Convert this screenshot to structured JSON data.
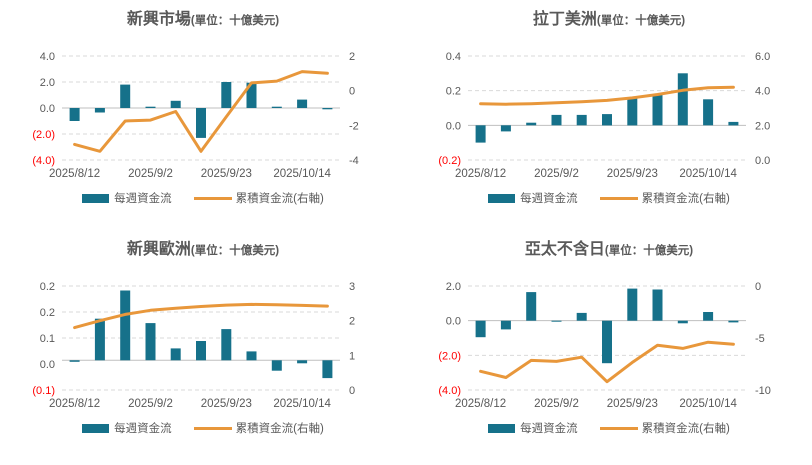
{
  "colors": {
    "bar": "#16718A",
    "line": "#E8973B",
    "grid": "#D9D9D9",
    "axis_line": "#BFBFBF",
    "text": "#595959",
    "negative": "#FF0000",
    "background": "#FFFFFF"
  },
  "legend": {
    "bar_label": "每週資金流",
    "line_label": "累積資金流(右軸)"
  },
  "chart_data": [
    {
      "type": "bar+line",
      "title": "新興市場",
      "unit_label": "(單位：十億美元)",
      "x_tick_labels": [
        "2025/8/12",
        "2025/9/2",
        "2025/9/23",
        "2025/10/14"
      ],
      "x_tick_indices": [
        0,
        3,
        6,
        9
      ],
      "left_axis": {
        "min": -4,
        "max": 4,
        "ticks": [
          {
            "value": 4,
            "label": "4.0"
          },
          {
            "value": 2,
            "label": "2.0"
          },
          {
            "value": 0,
            "label": "0.0"
          },
          {
            "value": -2,
            "label": "(2.0)"
          },
          {
            "value": -4,
            "label": "(4.0)"
          }
        ]
      },
      "right_axis": {
        "min": -4,
        "max": 2,
        "ticks": [
          {
            "value": 2,
            "label": "2"
          },
          {
            "value": 0,
            "label": "0"
          },
          {
            "value": -2,
            "label": "-2"
          },
          {
            "value": -4,
            "label": "-4"
          }
        ]
      },
      "series": [
        {
          "name": "每週資金流",
          "type": "bar",
          "axis": "left",
          "values": [
            -1.0,
            -0.35,
            1.8,
            0.1,
            0.55,
            -2.3,
            2.0,
            1.95,
            0.1,
            0.65,
            -0.1
          ]
        },
        {
          "name": "累積資金流(右軸)",
          "type": "line",
          "axis": "right",
          "values": [
            -3.1,
            -3.5,
            -1.75,
            -1.7,
            -1.2,
            -3.5,
            -1.5,
            0.45,
            0.55,
            1.1,
            1.0
          ]
        }
      ]
    },
    {
      "type": "bar+line",
      "title": "拉丁美洲",
      "unit_label": "(單位：十億美元)",
      "x_tick_labels": [
        "2025/8/12",
        "2025/9/2",
        "2025/9/23",
        "2025/10/14"
      ],
      "x_tick_indices": [
        0,
        3,
        6,
        9
      ],
      "left_axis": {
        "min": -0.2,
        "max": 0.4,
        "ticks": [
          {
            "value": 0.4,
            "label": "0.4"
          },
          {
            "value": 0.2,
            "label": "0.2"
          },
          {
            "value": 0,
            "label": "0.0"
          },
          {
            "value": -0.2,
            "label": "(0.2)"
          }
        ]
      },
      "right_axis": {
        "min": 0,
        "max": 6,
        "ticks": [
          {
            "value": 6,
            "label": "6.0"
          },
          {
            "value": 4,
            "label": "4.0"
          },
          {
            "value": 2,
            "label": "2.0"
          },
          {
            "value": 0,
            "label": "0.0"
          }
        ]
      },
      "series": [
        {
          "name": "每週資金流",
          "type": "bar",
          "axis": "left",
          "values": [
            -0.1,
            -0.035,
            0.015,
            0.06,
            0.06,
            0.065,
            0.155,
            0.18,
            0.3,
            0.15,
            0.02
          ]
        },
        {
          "name": "累積資金流(右軸)",
          "type": "line",
          "axis": "right",
          "values": [
            3.25,
            3.22,
            3.25,
            3.3,
            3.36,
            3.44,
            3.58,
            3.78,
            4.02,
            4.17,
            4.2
          ]
        }
      ]
    },
    {
      "type": "bar+line",
      "title": "新興歐洲",
      "unit_label": "(單位：十億美元)",
      "x_tick_labels": [
        "2025/8/12",
        "2025/9/2",
        "2025/9/23",
        "2025/10/14"
      ],
      "x_tick_indices": [
        0,
        3,
        6,
        9
      ],
      "left_axis": {
        "min": -0.1,
        "max": 0.25,
        "ticks": [
          {
            "value": 0.25,
            "label": "0.2"
          },
          {
            "value": 0.1625,
            "label": "0.2"
          },
          {
            "value": 0.075,
            "label": "0.1"
          },
          {
            "value": -0.0125,
            "label": "0.0"
          },
          {
            "value": -0.1,
            "label": "(0.1)"
          }
        ]
      },
      "right_axis": {
        "min": 0,
        "max": 3,
        "ticks": [
          {
            "value": 3,
            "label": "3"
          },
          {
            "value": 2,
            "label": "2"
          },
          {
            "value": 1,
            "label": "1"
          },
          {
            "value": 0,
            "label": "0"
          }
        ]
      },
      "series": [
        {
          "name": "每週資金流",
          "type": "bar",
          "axis": "left",
          "values": [
            -0.005,
            0.14,
            0.235,
            0.125,
            0.04,
            0.065,
            0.105,
            0.03,
            -0.035,
            -0.01,
            -0.06
          ]
        },
        {
          "name": "累積資金流(右軸)",
          "type": "line",
          "axis": "right",
          "values": [
            1.8,
            2.0,
            2.18,
            2.3,
            2.36,
            2.41,
            2.45,
            2.47,
            2.46,
            2.44,
            2.42
          ]
        }
      ]
    },
    {
      "type": "bar+line",
      "title": "亞太不含日",
      "unit_label": "(單位：十億美元)",
      "x_tick_labels": [
        "2025/8/12",
        "2025/9/2",
        "2025/9/23",
        "2025/10/14"
      ],
      "x_tick_indices": [
        0,
        3,
        6,
        9
      ],
      "left_axis": {
        "min": -4,
        "max": 2,
        "ticks": [
          {
            "value": 2,
            "label": "2.0"
          },
          {
            "value": 0,
            "label": "0.0"
          },
          {
            "value": -2,
            "label": "(2.0)"
          },
          {
            "value": -4,
            "label": "(4.0)"
          }
        ]
      },
      "right_axis": {
        "min": -10,
        "max": 0,
        "ticks": [
          {
            "value": 0,
            "label": "0"
          },
          {
            "value": -5,
            "label": "-5"
          },
          {
            "value": -10,
            "label": "-10"
          }
        ]
      },
      "series": [
        {
          "name": "每週資金流",
          "type": "bar",
          "axis": "left",
          "values": [
            -0.95,
            -0.5,
            1.65,
            -0.05,
            0.45,
            -2.45,
            1.85,
            1.8,
            -0.15,
            0.5,
            -0.1
          ]
        },
        {
          "name": "累積資金流(右軸)",
          "type": "line",
          "axis": "right",
          "values": [
            -8.2,
            -8.8,
            -7.15,
            -7.25,
            -6.85,
            -9.2,
            -7.35,
            -5.7,
            -6.0,
            -5.4,
            -5.6
          ]
        }
      ]
    }
  ]
}
